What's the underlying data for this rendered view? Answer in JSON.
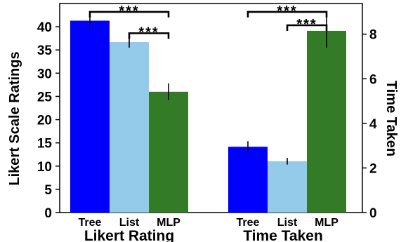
{
  "chart_data": {
    "type": "bar",
    "groups": [
      {
        "label": "Likert Rating",
        "axis": "left",
        "categories": [
          "Tree",
          "List",
          "MLP"
        ],
        "values": [
          41.3,
          36.7,
          26.0
        ],
        "errors": [
          1.2,
          1.2,
          1.8
        ],
        "colors": [
          "#0000ff",
          "#95cbea",
          "#347b27"
        ],
        "significance": [
          {
            "from": 0,
            "to": 2,
            "text": "***",
            "y": 43.2
          },
          {
            "from": 1,
            "to": 2,
            "text": "***",
            "y": 38.6
          }
        ]
      },
      {
        "label": "Time Taken",
        "axis": "right",
        "categories": [
          "Tree",
          "List",
          "MLP"
        ],
        "values": [
          2.95,
          2.3,
          8.15
        ],
        "errors": [
          0.25,
          0.15,
          0.75
        ],
        "colors": [
          "#0000ff",
          "#95cbea",
          "#347b27"
        ],
        "significance": [
          {
            "from": 0,
            "to": 2,
            "text": "***",
            "y": 9.0
          },
          {
            "from": 1,
            "to": 2,
            "text": "***",
            "y": 8.4
          }
        ]
      }
    ],
    "left_axis": {
      "label": "Likert Scale Ratings",
      "ylim": [
        0,
        45
      ],
      "ticks": [
        0,
        5,
        10,
        15,
        20,
        25,
        30,
        35,
        40
      ]
    },
    "right_axis": {
      "label": "Time Taken",
      "ylim": [
        0,
        9.375
      ],
      "ticks": [
        0,
        2,
        4,
        6,
        8
      ]
    },
    "grid": false,
    "legend": "none"
  }
}
